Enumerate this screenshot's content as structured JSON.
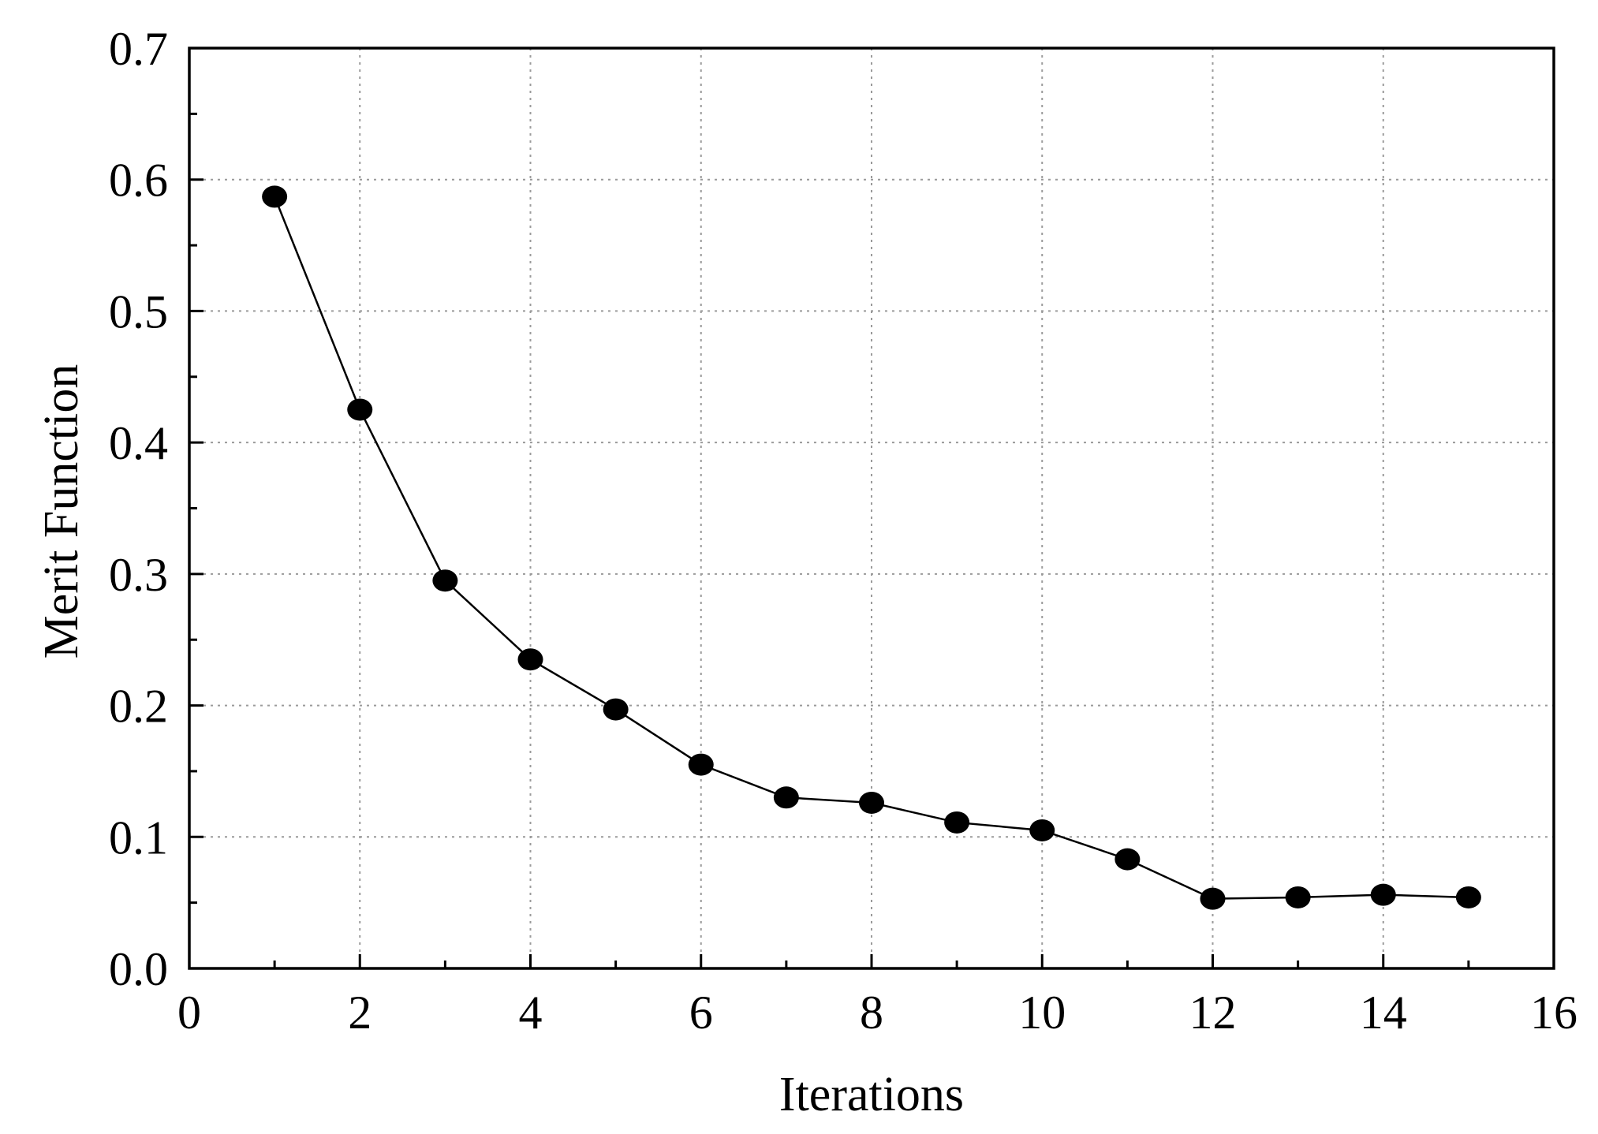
{
  "chart_data": {
    "type": "line",
    "title": "",
    "xlabel": "Iterations",
    "ylabel": "Merit Function",
    "xlim": [
      0,
      16
    ],
    "ylim": [
      0.0,
      0.7
    ],
    "xticks": [
      0,
      2,
      4,
      6,
      8,
      10,
      12,
      14,
      16
    ],
    "xtick_labels": [
      "0",
      "2",
      "4",
      "6",
      "8",
      "10",
      "12",
      "14",
      "16"
    ],
    "xminor_ticks": [
      1,
      3,
      5,
      7,
      9,
      11,
      13,
      15
    ],
    "yticks": [
      0.0,
      0.1,
      0.2,
      0.3,
      0.4,
      0.5,
      0.6,
      0.7
    ],
    "ytick_labels": [
      "0.0",
      "0.1",
      "0.2",
      "0.3",
      "0.4",
      "0.5",
      "0.6",
      "0.7"
    ],
    "yminor_ticks": [
      0.05,
      0.15,
      0.25,
      0.35,
      0.45,
      0.55,
      0.65
    ],
    "grid": true,
    "legend": "none",
    "series": [
      {
        "marker": "circle",
        "color": "#000000",
        "x": [
          1,
          2,
          3,
          4,
          5,
          6,
          7,
          8,
          9,
          10,
          11,
          12,
          13,
          14,
          15
        ],
        "values": [
          0.587,
          0.425,
          0.295,
          0.235,
          0.197,
          0.155,
          0.13,
          0.126,
          0.111,
          0.105,
          0.083,
          0.053,
          0.054,
          0.056,
          0.054
        ]
      }
    ]
  }
}
